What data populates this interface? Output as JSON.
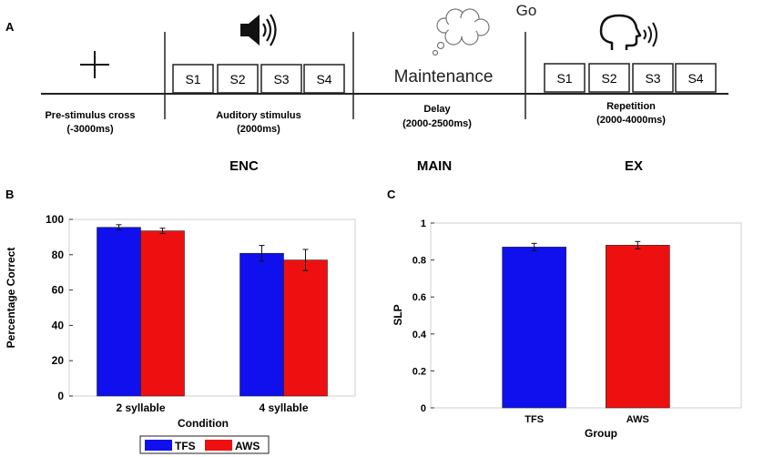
{
  "panel_a": {
    "label": "A",
    "go": "Go",
    "syllable_boxes": [
      "S1",
      "S2",
      "S3",
      "S4"
    ],
    "maintenance": "Maintenance",
    "phases": [
      {
        "line1": "Pre-stimulus cross",
        "line2": "(-3000ms)"
      },
      {
        "line1": "Auditory stimulus",
        "line2": "(2000ms)"
      },
      {
        "line1": "Delay",
        "line2": "(2000-2500ms)"
      },
      {
        "line1": "Repetition",
        "line2": "(2000-4000ms)"
      }
    ],
    "stage_labels": [
      "ENC",
      "MAIN",
      "EX"
    ]
  },
  "chart_data": [
    {
      "panel": "B",
      "type": "bar",
      "categories": [
        "2 syllable",
        "4 syllable"
      ],
      "series": [
        {
          "name": "TFS",
          "color": "#1010ee",
          "values": [
            95.5,
            80.8
          ],
          "errors": [
            1.5,
            4.5
          ]
        },
        {
          "name": "AWS",
          "color": "#ee1010",
          "values": [
            93.5,
            77.0
          ],
          "errors": [
            1.5,
            6.0
          ]
        }
      ],
      "xlabel": "Condition",
      "ylabel": "Percentage Correct",
      "ylim": [
        0,
        100
      ],
      "yticks": [
        "0",
        "20",
        "40",
        "60",
        "80",
        "100"
      ],
      "legend": {
        "position": "bottom",
        "entries": [
          "TFS",
          "AWS"
        ]
      }
    },
    {
      "panel": "C",
      "type": "bar",
      "categories": [
        "TFS",
        "AWS"
      ],
      "colors": [
        "#1010ee",
        "#ee1010"
      ],
      "values": [
        0.87,
        0.88
      ],
      "errors": [
        0.02,
        0.02
      ],
      "xlabel": "Group",
      "ylabel": "SLP",
      "ylim": [
        0,
        1
      ],
      "yticks": [
        "0",
        "0.2",
        "0.4",
        "0.6",
        "0.8",
        "1"
      ]
    }
  ]
}
